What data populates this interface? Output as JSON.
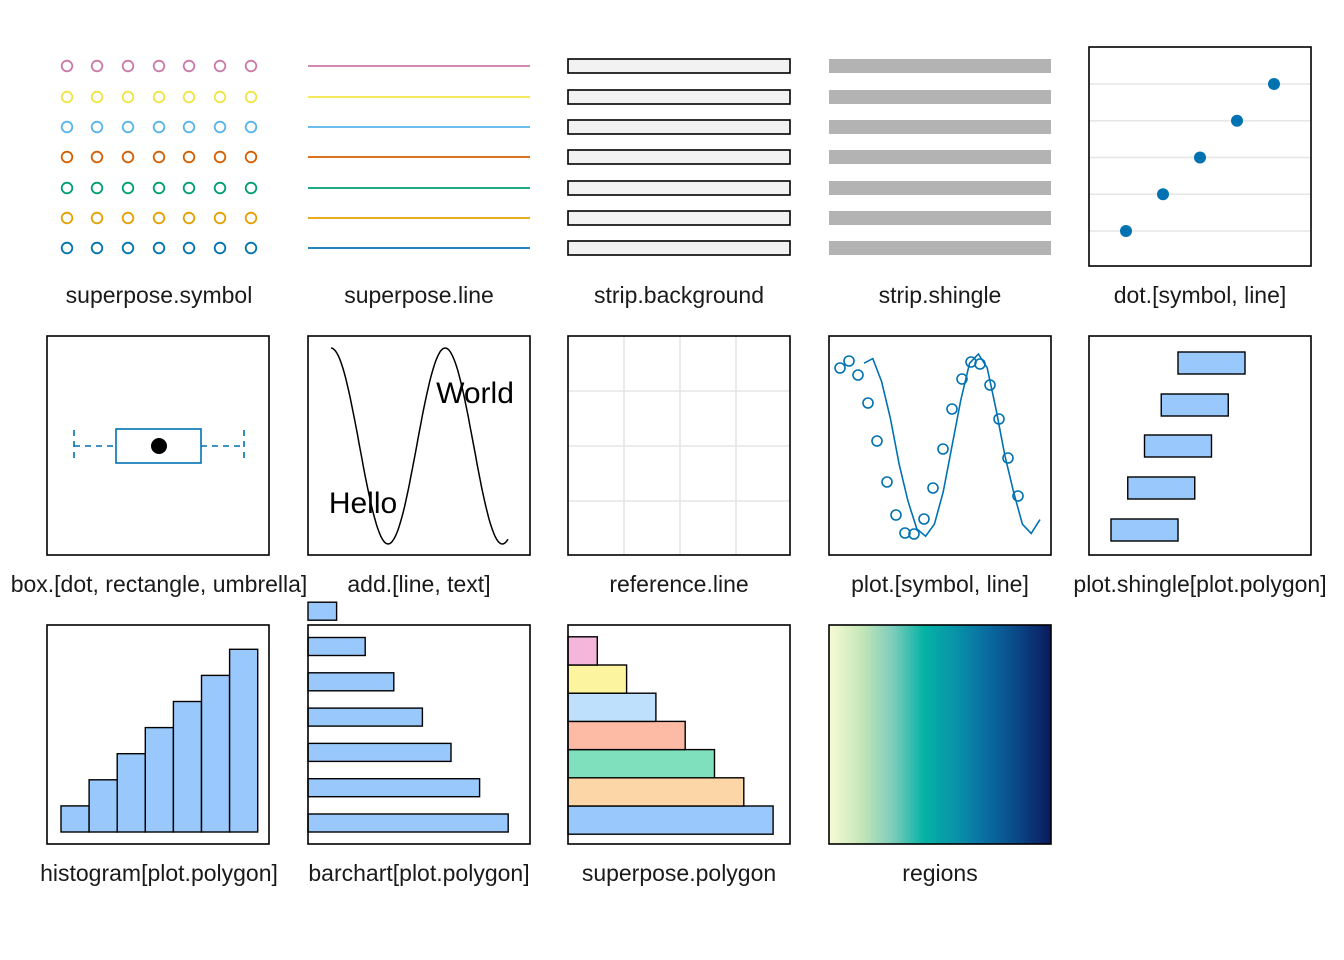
{
  "colors": {
    "superpose": [
      "#CC79A7",
      "#F0E442",
      "#56B4E9",
      "#D55E00",
      "#009E73",
      "#E69F00",
      "#0072B2"
    ],
    "blue": "#0072B2",
    "polygon_fill": "#99C8FC",
    "strip_background": "#F2F2F2",
    "strip_shingle": "#B3B3B3",
    "reference_line": "#E6E6E6",
    "polygon_fills": [
      "#99C8FC",
      "#FCD6A6",
      "#7FE0BE",
      "#FDBBA6",
      "#BFE0FC",
      "#FCF49F",
      "#F5B6DC"
    ],
    "regions_gradient": [
      "#F7FBD5",
      "#C7E7B8",
      "#7ECDBB",
      "#05B2A5",
      "#0893A8",
      "#0A6BA0",
      "#0A4585",
      "#0A1A5C"
    ]
  },
  "panels": [
    {
      "label": "superpose.symbol"
    },
    {
      "label": "superpose.line"
    },
    {
      "label": "strip.background"
    },
    {
      "label": "strip.shingle"
    },
    {
      "label": "dot.[symbol, line]"
    },
    {
      "label": "box.[dot, rectangle, umbrella]"
    },
    {
      "label": "add.[line, text]",
      "texts": [
        "World",
        "Hello"
      ]
    },
    {
      "label": "reference.line"
    },
    {
      "label": "plot.[symbol, line]"
    },
    {
      "label": "plot.shingle[plot.polygon]"
    },
    {
      "label": "histogram[plot.polygon]"
    },
    {
      "label": "barchart[plot.polygon]"
    },
    {
      "label": "superpose.polygon"
    },
    {
      "label": "regions"
    }
  ],
  "chart_data": [
    {
      "type": "scatter",
      "panel": "dot.[symbol, line]",
      "x": [
        1,
        2,
        3,
        4,
        5
      ],
      "y": [
        1,
        2,
        3,
        4,
        5
      ]
    },
    {
      "type": "line",
      "panel": "plot.[symbol, line]",
      "x": [
        0,
        1,
        2,
        3,
        4,
        5,
        6,
        7,
        8,
        9,
        10,
        11,
        12,
        13,
        14,
        15,
        16,
        17,
        18,
        19,
        20
      ],
      "y": [
        0.9,
        0.95,
        0.7,
        0.3,
        -0.2,
        -0.6,
        -0.9,
        -0.98,
        -0.85,
        -0.5,
        0.0,
        0.5,
        0.9,
        1.0,
        0.85,
        0.4,
        -0.1,
        -0.5,
        -0.85,
        -0.95,
        -0.8
      ]
    },
    {
      "type": "bar",
      "panel": "plot.shingle[plot.polygon]",
      "ranges": [
        [
          1,
          5
        ],
        [
          2,
          6
        ],
        [
          3,
          7
        ],
        [
          4,
          8
        ],
        [
          5,
          9
        ]
      ]
    },
    {
      "type": "bar",
      "panel": "histogram[plot.polygon]",
      "values": [
        1,
        2,
        3,
        4,
        5,
        6,
        7
      ]
    },
    {
      "type": "bar",
      "panel": "barchart[plot.polygon]",
      "values": [
        7,
        6,
        5,
        4,
        3,
        2,
        1
      ]
    },
    {
      "type": "bar",
      "panel": "superpose.polygon",
      "values": [
        7,
        6,
        5,
        4,
        3,
        2,
        1
      ]
    }
  ]
}
